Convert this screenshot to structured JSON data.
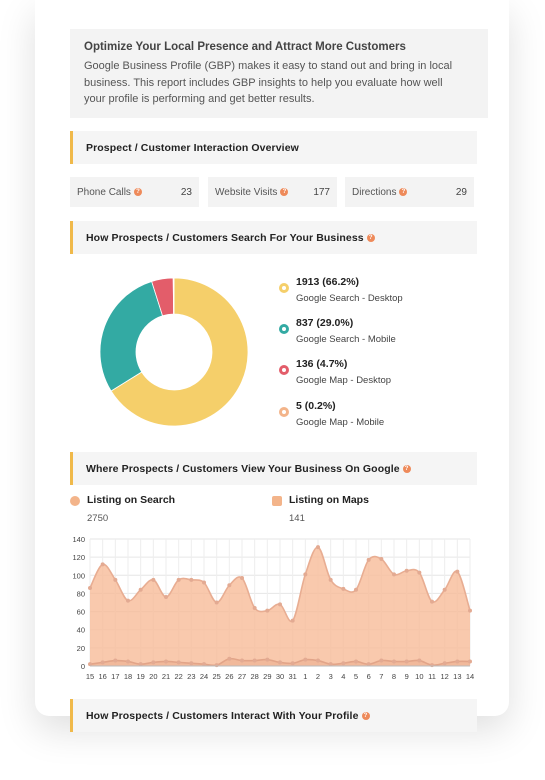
{
  "intro": {
    "title": "Optimize Your Local Presence and Attract More Customers",
    "body": "Google Business Profile (GBP) makes it easy to stand out and bring in local business. This report includes GBP insights to help you evaluate how well your profile is performing and get better results."
  },
  "sections": {
    "interaction": "Prospect / Customer Interaction Overview",
    "search": "How Prospects / Customers Search For Your Business",
    "view": "Where Prospects / Customers View Your Business On Google",
    "interact": "How Prospects / Customers Interact With Your Profile"
  },
  "stats": [
    {
      "label": "Phone Calls",
      "value": "23"
    },
    {
      "label": "Website Visits",
      "value": "177"
    },
    {
      "label": "Directions",
      "value": "29"
    }
  ],
  "donut": {
    "items": [
      {
        "value_text": "1913 (66.2%)",
        "name": "Google Search - Desktop",
        "value": 1913,
        "color": "#f5cf6a"
      },
      {
        "value_text": "837 (29.0%)",
        "name": "Google Search - Mobile",
        "value": 837,
        "color": "#33aaa3"
      },
      {
        "value_text": "136 (4.7%)",
        "name": "Google Map - Desktop",
        "value": 136,
        "color": "#e35d6a"
      },
      {
        "value_text": "5 (0.2%)",
        "name": "Google Map - Mobile",
        "value": 5,
        "color": "#f3b48a"
      }
    ]
  },
  "listings": {
    "search": {
      "label": "Listing on Search",
      "count": "2750"
    },
    "maps": {
      "label": "Listing on Maps",
      "count": "141"
    }
  },
  "chart_data": {
    "type": "area",
    "x": [
      "15",
      "16",
      "17",
      "18",
      "19",
      "20",
      "21",
      "22",
      "23",
      "24",
      "25",
      "26",
      "27",
      "28",
      "29",
      "30",
      "31",
      "1",
      "2",
      "3",
      "4",
      "5",
      "6",
      "7",
      "8",
      "9",
      "10",
      "11",
      "12",
      "13",
      "14"
    ],
    "series": [
      {
        "values": [
          86,
          112,
          95,
          72,
          84,
          95,
          76,
          95,
          95,
          92,
          70,
          89,
          97,
          64,
          61,
          68,
          50,
          101,
          131,
          95,
          85,
          84,
          117,
          118,
          101,
          105,
          103,
          71,
          84,
          104,
          61
        ],
        "color": "#f8bc99"
      },
      {
        "values": [
          2,
          4,
          6,
          5,
          2,
          4,
          5,
          4,
          3,
          2,
          1,
          8,
          6,
          6,
          7,
          4,
          3,
          7,
          6,
          2,
          3,
          5,
          2,
          6,
          5,
          5,
          6,
          1,
          3,
          5,
          5
        ],
        "color": "#eaa98a"
      }
    ],
    "ylim": [
      0,
      140
    ],
    "yticks": [
      "140",
      "120",
      "100",
      "80",
      "60",
      "40",
      "20",
      "0"
    ],
    "grid": true
  },
  "icons": {
    "help": "?"
  }
}
